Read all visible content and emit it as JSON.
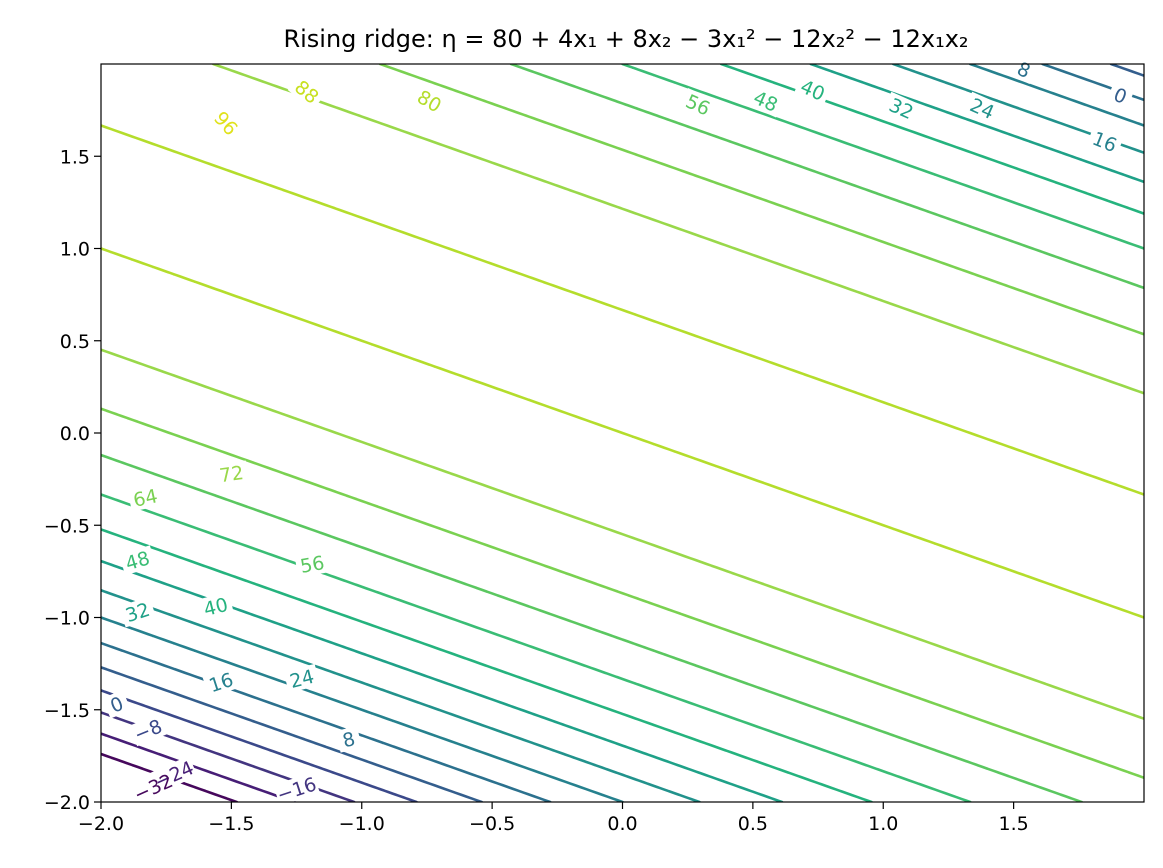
{
  "chart_data": {
    "type": "contour",
    "title": "Rising ridge: η = 80 + 4x₁ + 8x₂ − 3x₁² − 12x₂² − 12x₁x₂",
    "xlabel": "",
    "ylabel": "",
    "xlim": [
      -2.0,
      2.0
    ],
    "ylim": [
      -2.0,
      2.0
    ],
    "function": {
      "intercept": 80,
      "x1": 4,
      "x2": 8,
      "x1_sq": -3,
      "x2_sq": -12,
      "x1x2": -12
    },
    "x_ticks": [
      -2.0,
      -1.5,
      -1.0,
      -0.5,
      0.0,
      0.5,
      1.0,
      1.5
    ],
    "y_ticks": [
      -2.0,
      -1.5,
      -1.0,
      -0.5,
      0.0,
      0.5,
      1.0,
      1.5
    ],
    "x_tick_labels": [
      "−2.0",
      "−1.5",
      "−1.0",
      "−0.5",
      "0.0",
      "0.5",
      "1.0",
      "1.5"
    ],
    "y_tick_labels": [
      "−2.0",
      "−1.5",
      "−1.0",
      "−0.5",
      "0.0",
      "0.5",
      "1.0",
      "1.5"
    ],
    "levels": [
      -32,
      -24,
      -16,
      -8,
      0,
      8,
      16,
      24,
      32,
      40,
      48,
      56,
      64,
      72,
      80,
      88,
      96
    ],
    "level_colors": {
      "-32": "#46085c",
      "-24": "#471e76",
      "-16": "#433580",
      "-8": "#3b498a",
      "0": "#345e8d",
      "8": "#2c718e",
      "16": "#26818e",
      "24": "#22928c",
      "32": "#1fa188",
      "40": "#25b37e",
      "48": "#3abd75",
      "56": "#5bc760",
      "64": "#7ad151",
      "72": "#99d84a",
      "80": "#b4dd2c",
      "88": "#c8e020",
      "96": "#e0e21b"
    },
    "contour_labels": [
      {
        "text": "96",
        "level": 96,
        "x": -1.52,
        "y": 1.68,
        "angle": 48
      },
      {
        "text": "88",
        "level": 88,
        "x": -1.21,
        "y": 1.85,
        "angle": 40
      },
      {
        "text": "80",
        "level": 80,
        "x": -0.74,
        "y": 1.8,
        "angle": 30
      },
      {
        "text": "56",
        "level": 56,
        "x": 0.29,
        "y": 1.78,
        "angle": 24
      },
      {
        "text": "48",
        "level": 48,
        "x": 0.55,
        "y": 1.8,
        "angle": 24
      },
      {
        "text": "40",
        "level": 40,
        "x": 0.73,
        "y": 1.86,
        "angle": 24
      },
      {
        "text": "32",
        "level": 32,
        "x": 1.07,
        "y": 1.76,
        "angle": 24
      },
      {
        "text": "24",
        "level": 24,
        "x": 1.38,
        "y": 1.76,
        "angle": 24
      },
      {
        "text": "8",
        "level": 8,
        "x": 1.54,
        "y": 1.97,
        "angle": 24
      },
      {
        "text": "0",
        "level": 0,
        "x": 1.91,
        "y": 1.83,
        "angle": 22
      },
      {
        "text": "16",
        "level": 16,
        "x": 1.85,
        "y": 1.58,
        "angle": 22
      },
      {
        "text": "72",
        "level": 72,
        "x": -1.5,
        "y": -0.22,
        "angle": -8
      },
      {
        "text": "64",
        "level": 64,
        "x": -1.83,
        "y": -0.35,
        "angle": -12
      },
      {
        "text": "56",
        "level": 56,
        "x": -1.19,
        "y": -0.71,
        "angle": -10
      },
      {
        "text": "48",
        "level": 48,
        "x": -1.86,
        "y": -0.69,
        "angle": -16
      },
      {
        "text": "40",
        "level": 40,
        "x": -1.56,
        "y": -0.94,
        "angle": -14
      },
      {
        "text": "32",
        "level": 32,
        "x": -1.86,
        "y": -0.97,
        "angle": -18
      },
      {
        "text": "24",
        "level": 24,
        "x": -1.23,
        "y": -1.33,
        "angle": -14
      },
      {
        "text": "16",
        "level": 16,
        "x": -1.54,
        "y": -1.35,
        "angle": -18
      },
      {
        "text": "0",
        "level": 0,
        "x": -1.94,
        "y": -1.47,
        "angle": -22
      },
      {
        "text": "8",
        "level": 8,
        "x": -1.05,
        "y": -1.66,
        "angle": -14
      },
      {
        "text": "−8",
        "level": -8,
        "x": -1.82,
        "y": -1.61,
        "angle": -22
      },
      {
        "text": "−16",
        "level": -16,
        "x": -1.25,
        "y": -1.93,
        "angle": -18
      },
      {
        "text": "−24",
        "level": -24,
        "x": -1.72,
        "y": -1.85,
        "angle": -24
      },
      {
        "text": "−32",
        "level": -32,
        "x": -1.8,
        "y": -1.92,
        "angle": -24
      }
    ],
    "grid": false,
    "legend": "none"
  }
}
